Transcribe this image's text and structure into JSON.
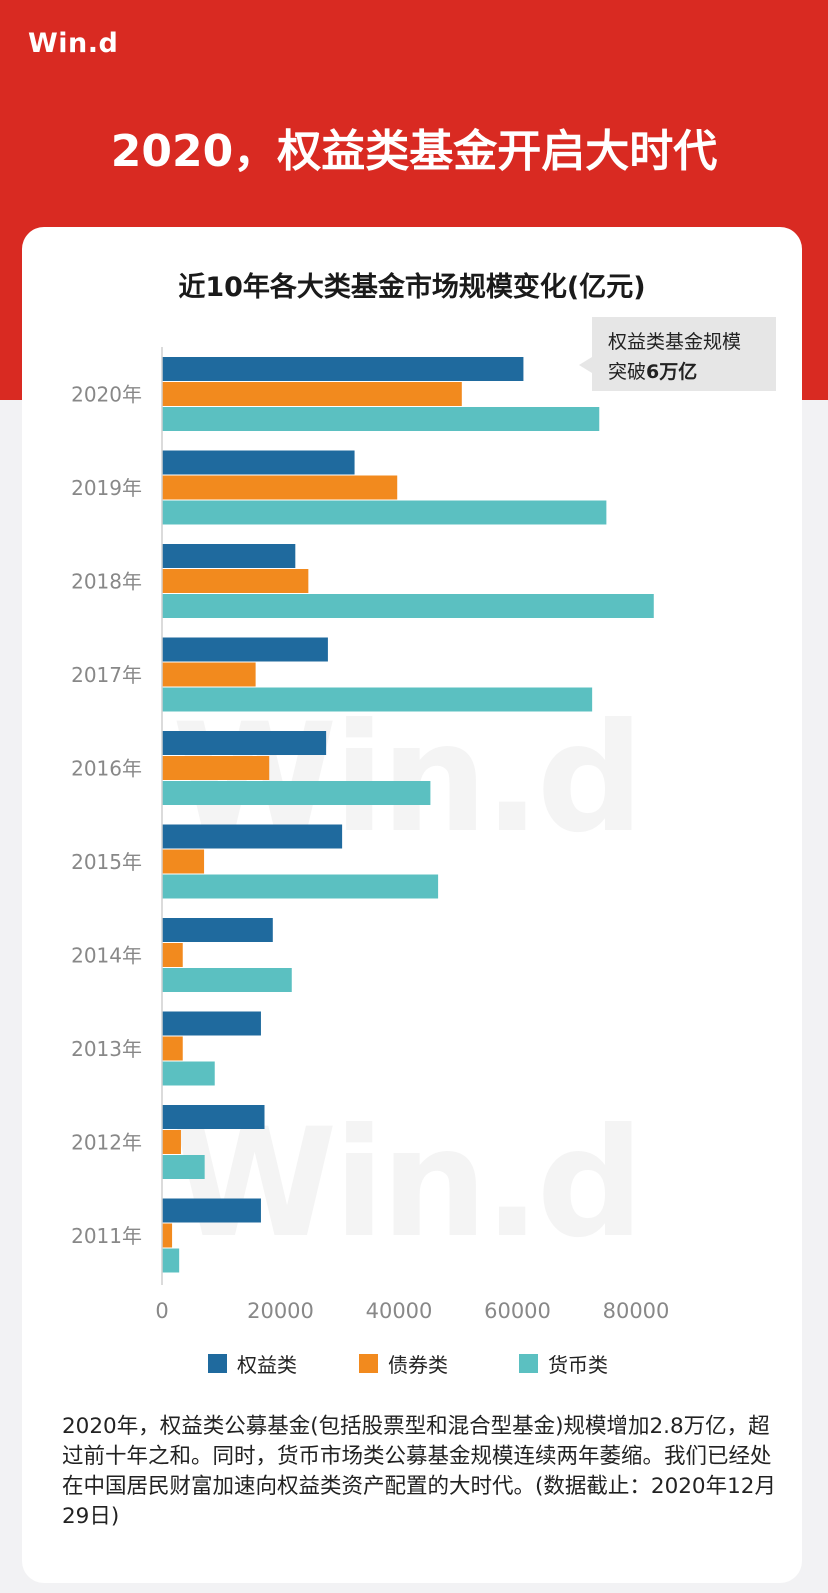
{
  "header": {
    "logo": "Win.d",
    "headline": "2020，权益类基金开启大时代"
  },
  "watermark": "Win.d",
  "chart_data": {
    "type": "bar",
    "orientation": "horizontal",
    "title": "近10年各大类基金市场规模变化(亿元)",
    "categories": [
      "2020年",
      "2019年",
      "2018年",
      "2017年",
      "2016年",
      "2015年",
      "2014年",
      "2013年",
      "2012年",
      "2011年"
    ],
    "series": [
      {
        "name": "权益类",
        "color": "#1f6a9e",
        "values": [
          61000,
          32500,
          22500,
          28000,
          27700,
          30400,
          18700,
          16700,
          17300,
          16700
        ]
      },
      {
        "name": "债券类",
        "color": "#f28a1e",
        "values": [
          50600,
          39700,
          24700,
          15800,
          18100,
          7100,
          3500,
          3500,
          3200,
          1700
        ]
      },
      {
        "name": "货币类",
        "color": "#5bc0c1",
        "values": [
          73800,
          75000,
          83000,
          72600,
          45300,
          46600,
          21900,
          8900,
          7200,
          2900
        ]
      }
    ],
    "xticks": [
      0,
      20000,
      40000,
      60000,
      80000
    ],
    "xlim": [
      0,
      90000
    ],
    "legend_position": "bottom",
    "annotation": {
      "line1": "权益类基金规模",
      "line2_prefix": "突破",
      "line2_bold": "6万亿"
    }
  },
  "note": "2020年，权益类公募基金(包括股票型和混合型基金)规模增加2.8万亿，超过前十年之和。同时，货币市场类公募基金规模连续两年萎缩。我们已经处在中国居民财富加速向权益类资产配置的大时代。(数据截止：2020年12月29日)"
}
